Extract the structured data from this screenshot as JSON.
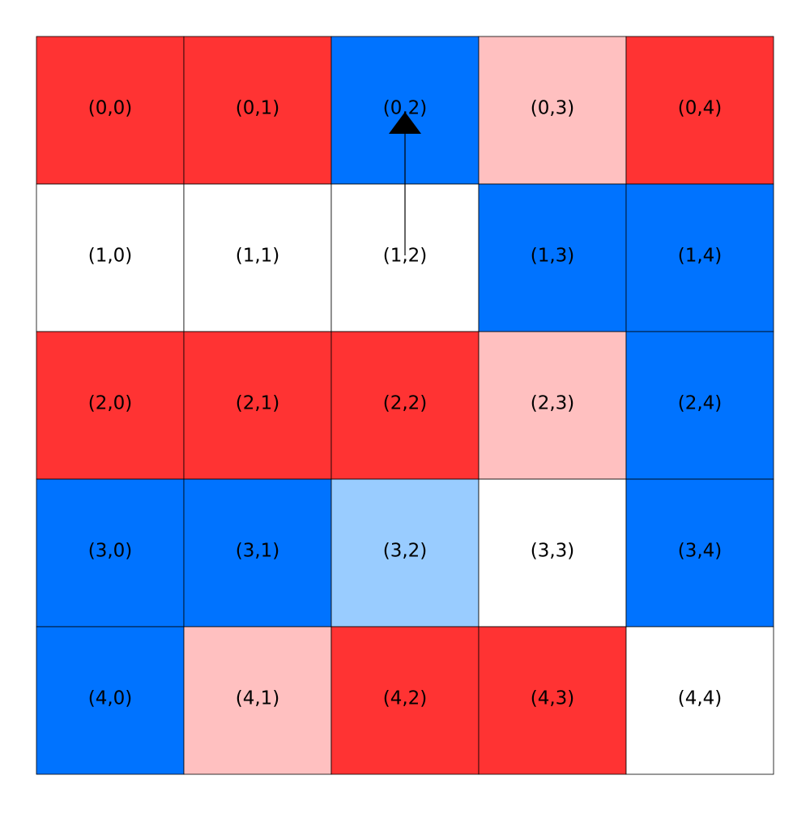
{
  "grid": {
    "rows": [
      [
        {
          "label": "(0,0)",
          "color": "#ff3333"
        },
        {
          "label": "(0,1)",
          "color": "#ff3333"
        },
        {
          "label": "(0,2)",
          "color": "#0073ff"
        },
        {
          "label": "(0,3)",
          "color": "#ffc0c0"
        },
        {
          "label": "(0,4)",
          "color": "#ff3333"
        }
      ],
      [
        {
          "label": "(1,0)",
          "color": "#ffffff"
        },
        {
          "label": "(1,1)",
          "color": "#ffffff"
        },
        {
          "label": "(1,2)",
          "color": "#ffffff"
        },
        {
          "label": "(1,3)",
          "color": "#0073ff"
        },
        {
          "label": "(1,4)",
          "color": "#0073ff"
        }
      ],
      [
        {
          "label": "(2,0)",
          "color": "#ff3333"
        },
        {
          "label": "(2,1)",
          "color": "#ff3333"
        },
        {
          "label": "(2,2)",
          "color": "#ff3333"
        },
        {
          "label": "(2,3)",
          "color": "#ffc0c0"
        },
        {
          "label": "(2,4)",
          "color": "#0073ff"
        }
      ],
      [
        {
          "label": "(3,0)",
          "color": "#0073ff"
        },
        {
          "label": "(3,1)",
          "color": "#0073ff"
        },
        {
          "label": "(3,2)",
          "color": "#99ccff"
        },
        {
          "label": "(3,3)",
          "color": "#ffffff"
        },
        {
          "label": "(3,4)",
          "color": "#0073ff"
        }
      ],
      [
        {
          "label": "(4,0)",
          "color": "#0073ff"
        },
        {
          "label": "(4,1)",
          "color": "#ffc0c0"
        },
        {
          "label": "(4,2)",
          "color": "#ff3333"
        },
        {
          "label": "(4,3)",
          "color": "#ff3333"
        },
        {
          "label": "(4,4)",
          "color": "#ffffff"
        }
      ]
    ]
  }
}
